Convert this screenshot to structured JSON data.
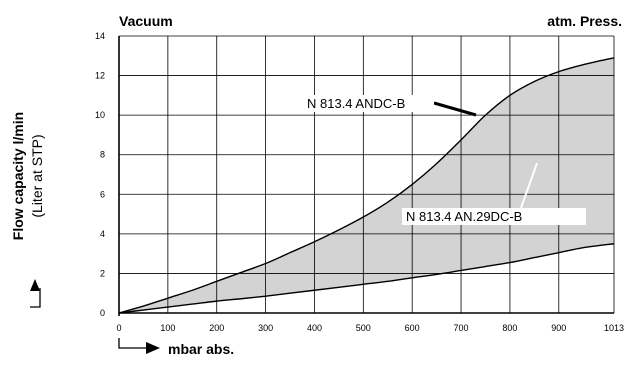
{
  "chart_data": {
    "type": "area",
    "title": "",
    "top_left_label": "Vacuum",
    "top_right_label": "atm. Press.",
    "xlabel": "mbar abs.",
    "ylabel": "Flow capacity l/min",
    "ylabel_sub": "(Liter at STP)",
    "xlim": [
      0,
      1013
    ],
    "ylim": [
      0,
      14
    ],
    "x_ticks": [
      0,
      100,
      200,
      300,
      400,
      500,
      600,
      700,
      800,
      900,
      1013
    ],
    "y_ticks": [
      0,
      2,
      4,
      6,
      8,
      10,
      12,
      14
    ],
    "grid": true,
    "series": [
      {
        "name": "N 813.4 ANDC-B",
        "x": [
          0,
          50,
          100,
          150,
          200,
          250,
          300,
          350,
          400,
          450,
          500,
          550,
          600,
          650,
          700,
          750,
          800,
          850,
          900,
          950,
          1013
        ],
        "values": [
          0,
          0.35,
          0.75,
          1.15,
          1.6,
          2.05,
          2.5,
          3.05,
          3.6,
          4.2,
          4.85,
          5.6,
          6.5,
          7.55,
          8.75,
          10.0,
          11.0,
          11.7,
          12.2,
          12.55,
          12.9
        ]
      },
      {
        "name": "N 813.4 AN.29DC-B",
        "x": [
          0,
          50,
          100,
          150,
          200,
          250,
          300,
          350,
          400,
          450,
          500,
          550,
          600,
          650,
          700,
          750,
          800,
          850,
          900,
          950,
          1013
        ],
        "values": [
          0,
          0.15,
          0.3,
          0.45,
          0.6,
          0.72,
          0.85,
          1.0,
          1.15,
          1.3,
          1.45,
          1.6,
          1.78,
          1.95,
          2.15,
          2.35,
          2.55,
          2.8,
          3.05,
          3.3,
          3.5
        ]
      }
    ],
    "fill_color": "#d3d3d3",
    "line_color": "#000000"
  }
}
